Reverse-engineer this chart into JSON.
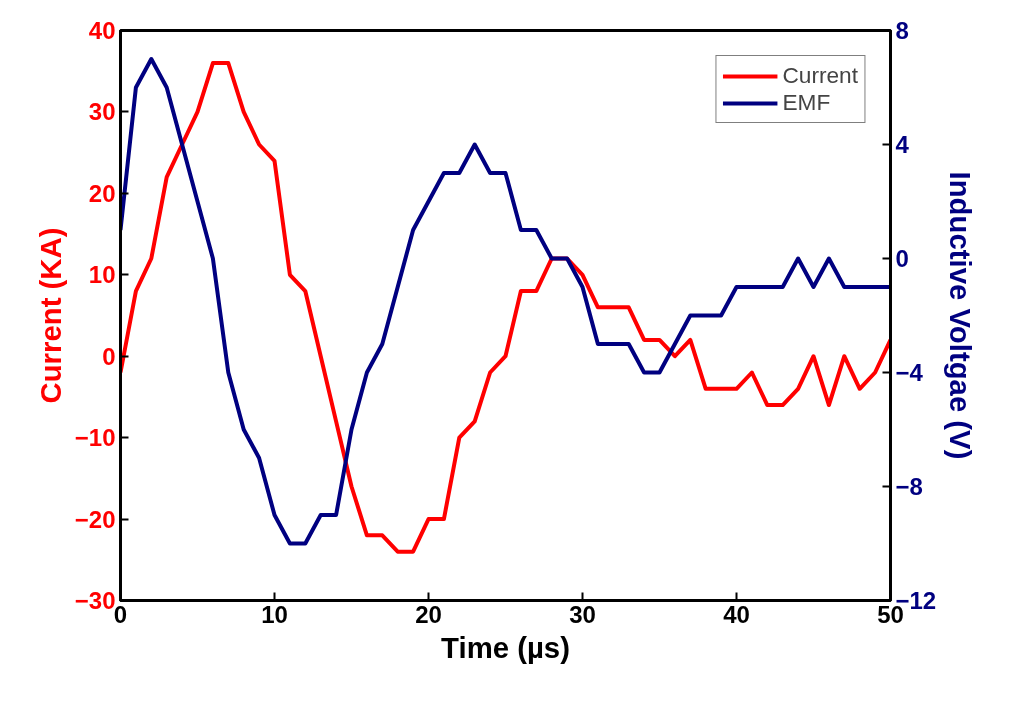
{
  "chart_data": {
    "type": "line",
    "xlabel": "Time (µs)",
    "ylabel": "Current (KA)",
    "y2label": "Inductive Voltgae (V)",
    "x": [
      0,
      1,
      2,
      3,
      4,
      5,
      6,
      7,
      8,
      9,
      10,
      11,
      12,
      13,
      14,
      15,
      16,
      17,
      18,
      19,
      20,
      21,
      22,
      23,
      24,
      25,
      26,
      27,
      28,
      29,
      30,
      31,
      32,
      33,
      34,
      35,
      36,
      37,
      38,
      39,
      40,
      41,
      42,
      43,
      44,
      45,
      46,
      47,
      48,
      49,
      50
    ],
    "series": [
      {
        "name": "Current",
        "color": "#ff0000",
        "values": [
          -2,
          8,
          12,
          22,
          26,
          30,
          36,
          36,
          30,
          26,
          24,
          10,
          8,
          0,
          -8,
          -16,
          -22,
          -22,
          -24,
          -24,
          -20,
          -20,
          -10,
          -8,
          -2,
          0,
          8,
          8,
          12,
          12,
          10,
          6,
          6,
          6,
          2,
          2,
          0,
          2,
          -4,
          -4,
          -4,
          -2,
          -6,
          -6,
          -4,
          0,
          -6,
          0,
          -4,
          -2,
          2
        ]
      },
      {
        "name": "EMF",
        "color": "#000080",
        "axis": "y2",
        "values": [
          1,
          6,
          7,
          6,
          4,
          2,
          0,
          -4,
          -6,
          -7,
          -9,
          -10,
          -10,
          -9,
          -9,
          -6,
          -4,
          -3,
          -1,
          1,
          2,
          3,
          3,
          4,
          3,
          3,
          1,
          1,
          0,
          0,
          -1,
          -3,
          -3,
          -3,
          -4,
          -4,
          -3,
          -2,
          -2,
          -2,
          -1,
          -1,
          -1,
          -1,
          0,
          -1,
          0,
          -1,
          -1,
          -1,
          -1
        ]
      }
    ],
    "xlim": [
      0,
      50
    ],
    "xticks": [
      0,
      10,
      20,
      30,
      40,
      50
    ],
    "ylim": [
      -30,
      40
    ],
    "yticks": [
      -30,
      -20,
      -10,
      0,
      10,
      20,
      30,
      40
    ],
    "y2lim": [
      -12,
      8
    ],
    "y2ticks": [
      -12,
      -8,
      -4,
      0,
      4,
      8
    ],
    "legend": "top right",
    "grid": false,
    "line_style": "solid"
  }
}
